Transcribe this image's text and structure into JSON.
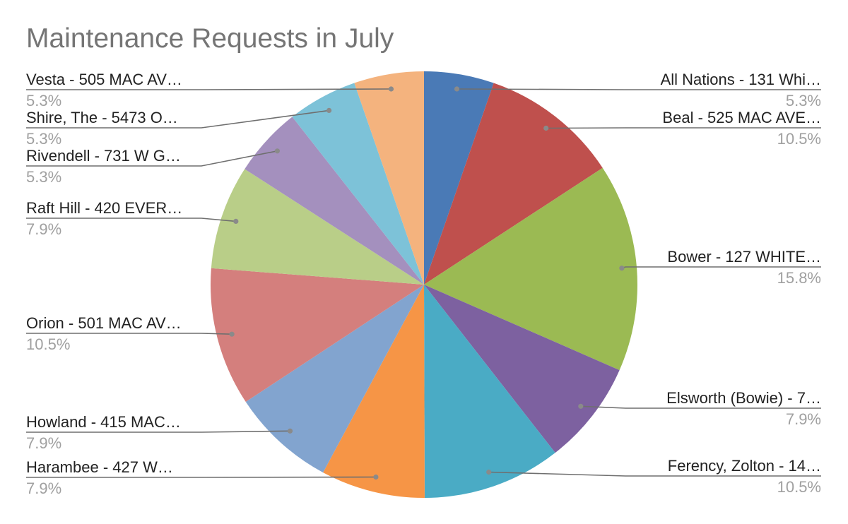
{
  "chart_data": {
    "type": "pie",
    "title": "Maintenance Requests in July",
    "start_angle_deg": 0,
    "direction": "clockwise",
    "legend": "labels-on-slices",
    "slices": [
      {
        "label": "All Nations - 131 Whi…",
        "value": 5.3,
        "display": "5.3%",
        "color": "#4a7ab6"
      },
      {
        "label": "Beal - 525 MAC AVE…",
        "value": 10.5,
        "display": "10.5%",
        "color": "#bf504d"
      },
      {
        "label": "Bower - 127 WHITE…",
        "value": 15.8,
        "display": "15.8%",
        "color": "#9bba53"
      },
      {
        "label": "Elsworth (Bowie) - 7…",
        "value": 7.9,
        "display": "7.9%",
        "color": "#7d61a0"
      },
      {
        "label": "Ferency, Zolton - 14…",
        "value": 10.5,
        "display": "10.5%",
        "color": "#4aabc5"
      },
      {
        "label": "Harambee - 427 W…",
        "value": 7.9,
        "display": "7.9%",
        "color": "#f69546"
      },
      {
        "label": "Howland - 415 MAC…",
        "value": 7.9,
        "display": "7.9%",
        "color": "#82a4cf"
      },
      {
        "label": "Orion - 501 MAC AV…",
        "value": 10.5,
        "display": "10.5%",
        "color": "#d47f7d"
      },
      {
        "label": "Raft Hill - 420 EVER…",
        "value": 7.9,
        "display": "7.9%",
        "color": "#b9ce88"
      },
      {
        "label": "Rivendell - 731 W G…",
        "value": 5.3,
        "display": "5.3%",
        "color": "#a490be"
      },
      {
        "label": "Shire, The - 5473 O…",
        "value": 5.3,
        "display": "5.3%",
        "color": "#7dc2d8"
      },
      {
        "label": "Vesta - 505 MAC AV…",
        "value": 5.3,
        "display": "5.3%",
        "color": "#f4b37e"
      }
    ]
  }
}
